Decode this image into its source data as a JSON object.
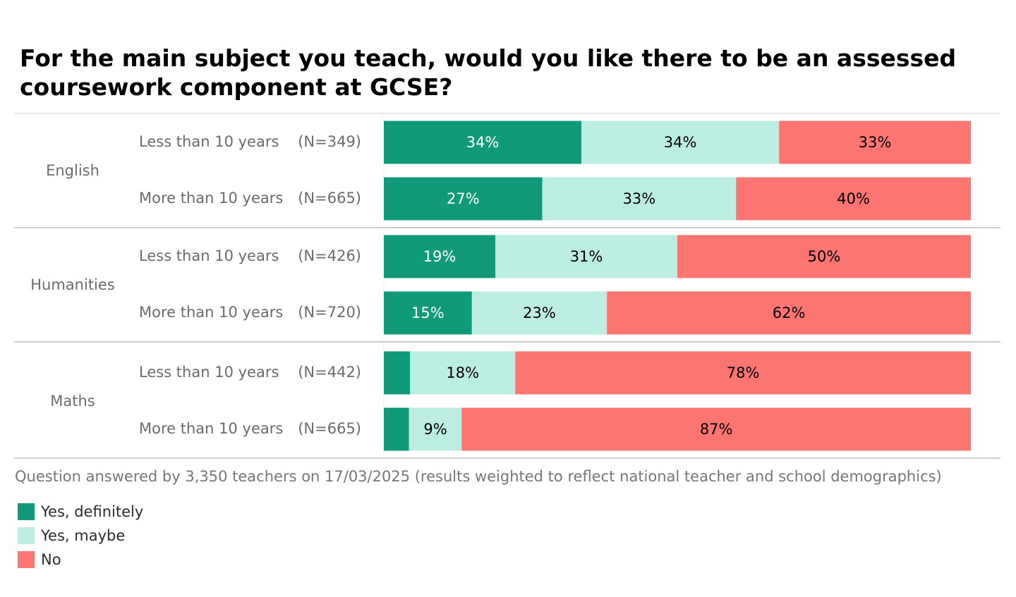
{
  "chart_data": {
    "type": "bar",
    "orientation": "horizontal",
    "stacked": true,
    "normalized": true,
    "title": "For the main subject you teach, would you like there to be an assessed coursework component at GCSE?",
    "note": "Question answered by 3,350 teachers on 17/03/2025 (results weighted to reflect national teacher and school demographics)",
    "legend_position": "bottom-left",
    "series": [
      {
        "name": "Yes, definitely",
        "color": "#109a79",
        "text_color": "#ffffff"
      },
      {
        "name": "Yes, maybe",
        "color": "#bbeee0",
        "text_color": "#000000"
      },
      {
        "name": "No",
        "color": "#fc7570",
        "text_color": "#000000"
      }
    ],
    "groups": [
      {
        "name": "English",
        "rows": [
          {
            "label": "Less than 10 years",
            "n": "(N=349)",
            "values": [
              34,
              34,
              33
            ],
            "labels": [
              "34%",
              "34%",
              "33%"
            ]
          },
          {
            "label": "More than 10 years",
            "n": "(N=665)",
            "values": [
              27,
              33,
              40
            ],
            "labels": [
              "27%",
              "33%",
              "40%"
            ]
          }
        ]
      },
      {
        "name": "Humanities",
        "rows": [
          {
            "label": "Less than 10 years",
            "n": "(N=426)",
            "values": [
              19,
              31,
              50
            ],
            "labels": [
              "19%",
              "31%",
              "50%"
            ]
          },
          {
            "label": "More than 10 years",
            "n": "(N=720)",
            "values": [
              15,
              23,
              62
            ],
            "labels": [
              "15%",
              "23%",
              "62%"
            ]
          }
        ]
      },
      {
        "name": "Maths",
        "rows": [
          {
            "label": "Less than 10 years",
            "n": "(N=442)",
            "values": [
              4.5,
              18,
              78
            ],
            "labels": [
              "",
              "18%",
              "78%"
            ]
          },
          {
            "label": "More than 10 years",
            "n": "(N=665)",
            "values": [
              4.3,
              9,
              87
            ],
            "labels": [
              "",
              "9%",
              "87%"
            ]
          }
        ]
      }
    ]
  }
}
